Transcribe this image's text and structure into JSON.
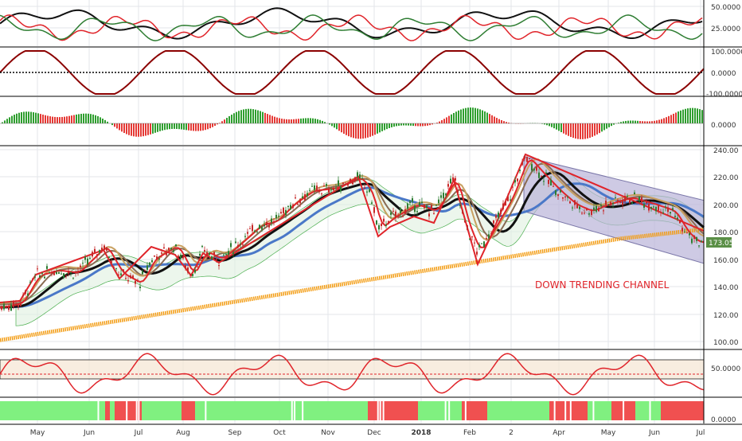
{
  "colors": {
    "background": "#ffffff",
    "panel_border": "#000000",
    "grid": "#e3e6ea",
    "axis_text": "#333333",
    "price_up": "#2e7d32",
    "price_down": "#c62828",
    "hist_up": "#2e9e2e",
    "hist_down": "#e53935",
    "bar_green": "#80f080",
    "bar_red": "#f05050",
    "channel_fill": "#b9b4d8",
    "channel_edge": "#7a76a8",
    "ema_orange": "#f39c12",
    "ma_black": "#111111",
    "ma_blue": "#4a78c8",
    "ma_red": "#e0242a",
    "ma_tan": "#c8a060",
    "zigzag": "#e0242a",
    "cloud_green": "#4caf50",
    "cloud_red": "#e57373",
    "annotation_red": "#e0242a",
    "price_label_bg": "#5a8f46",
    "ind_dark_red": "#8b0000",
    "ind_green": "#2e7d32",
    "dotted_line": "#000000",
    "band_fill": "#f5e6d3",
    "dashed_red": "#e0242a"
  },
  "x_axis": {
    "labels": [
      "May",
      "Jun",
      "Jul",
      "Aug",
      "Sep",
      "Oct",
      "Nov",
      "Dec",
      "2018",
      "Feb",
      "2",
      "Apr",
      "May",
      "Jun",
      "Jul"
    ],
    "bold": [
      "2018"
    ]
  },
  "panels": {
    "adx": {
      "tick_labels": [
        "50.0000",
        "25.0000"
      ]
    },
    "cci": {
      "tick_labels": [
        "100.0000",
        "0.0000",
        "-100.0000"
      ]
    },
    "macd": {
      "tick_labels": [
        "0.0000"
      ]
    },
    "price": {
      "tick_labels": [
        "240.00",
        "220.00",
        "200.00",
        "180.00",
        "160.00",
        "140.00",
        "120.00",
        "100.00"
      ],
      "last_price_label": "173.05",
      "annotation": "DOWN TRENDING CHANNEL"
    },
    "rsi": {
      "tick_labels": [
        "50.0000"
      ]
    },
    "trend": {
      "tick_labels": [
        "0.0000"
      ]
    }
  },
  "chart_data": {
    "type": "line",
    "title": "",
    "instrument_unlabeled": true,
    "x_range_months": [
      "2017-04",
      "2018-07"
    ],
    "panels": [
      {
        "name": "directional-indicators",
        "ylim": [
          10,
          55
        ],
        "series_colors": [
          "#111111",
          "#e0242a",
          "#2e7d32"
        ]
      },
      {
        "name": "oscillator",
        "ylim": [
          -110,
          110
        ],
        "reference_lines": [
          100,
          0,
          -100
        ]
      },
      {
        "name": "histogram",
        "zero_line": 0
      },
      {
        "name": "price",
        "type": "candlestick",
        "ylim": [
          95,
          242
        ],
        "last_price": 173.05,
        "approx_path": [
          {
            "month": "Apr",
            "price": 125
          },
          {
            "month": "May",
            "price": 150
          },
          {
            "month": "Jun",
            "price": 160
          },
          {
            "month": "Jul",
            "price": 162
          },
          {
            "month": "Aug",
            "price": 165
          },
          {
            "month": "Sep",
            "price": 180
          },
          {
            "month": "Oct",
            "price": 205
          },
          {
            "month": "Nov",
            "price": 220
          },
          {
            "month": "Dec",
            "price": 190
          },
          {
            "month": "Jan",
            "price": 200
          },
          {
            "month": "Feb",
            "price": 160
          },
          {
            "month": "Mar",
            "price": 235
          },
          {
            "month": "Apr",
            "price": 200
          },
          {
            "month": "May",
            "price": 200
          },
          {
            "month": "Jun",
            "price": 190
          },
          {
            "month": "Jul",
            "price": 173
          }
        ],
        "channel": {
          "upper_start": 235,
          "upper_end": 203,
          "lower_start": 195,
          "lower_end": 157,
          "label": "DOWN TRENDING CHANNEL"
        }
      },
      {
        "name": "rsi",
        "ylim": [
          0,
          100
        ],
        "band": [
          40,
          75
        ],
        "midline": 50
      },
      {
        "name": "trend-state",
        "type": "bars",
        "values": [
          "green",
          "red"
        ]
      }
    ]
  }
}
